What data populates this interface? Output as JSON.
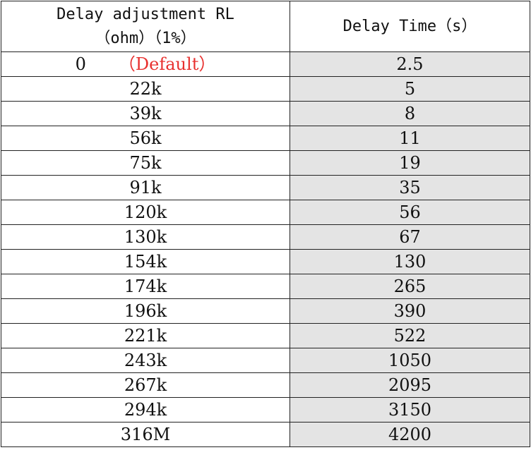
{
  "header": {
    "col1_line1": "Delay adjustment  RL",
    "col1_line2": "（ohm）（1%）",
    "col2": "Delay Time（s）"
  },
  "default_label": "（Default）",
  "colors": {
    "default_label": "#e8312f",
    "delay_time_column_bg": "#e4e4e4",
    "border": "#222222"
  },
  "rows": [
    {
      "rl": "0",
      "delay": "2.5"
    },
    {
      "rl": "22k",
      "delay": "5"
    },
    {
      "rl": "39k",
      "delay": "8"
    },
    {
      "rl": "56k",
      "delay": "11"
    },
    {
      "rl": "75k",
      "delay": "19"
    },
    {
      "rl": "91k",
      "delay": "35"
    },
    {
      "rl": "120k",
      "delay": "56"
    },
    {
      "rl": "130k",
      "delay": "67"
    },
    {
      "rl": "154k",
      "delay": "130"
    },
    {
      "rl": "174k",
      "delay": "265"
    },
    {
      "rl": "196k",
      "delay": "390"
    },
    {
      "rl": "221k",
      "delay": "522"
    },
    {
      "rl": "243k",
      "delay": "1050"
    },
    {
      "rl": "267k",
      "delay": "2095"
    },
    {
      "rl": "294k",
      "delay": "3150"
    },
    {
      "rl": "316M",
      "delay": "4200"
    }
  ]
}
